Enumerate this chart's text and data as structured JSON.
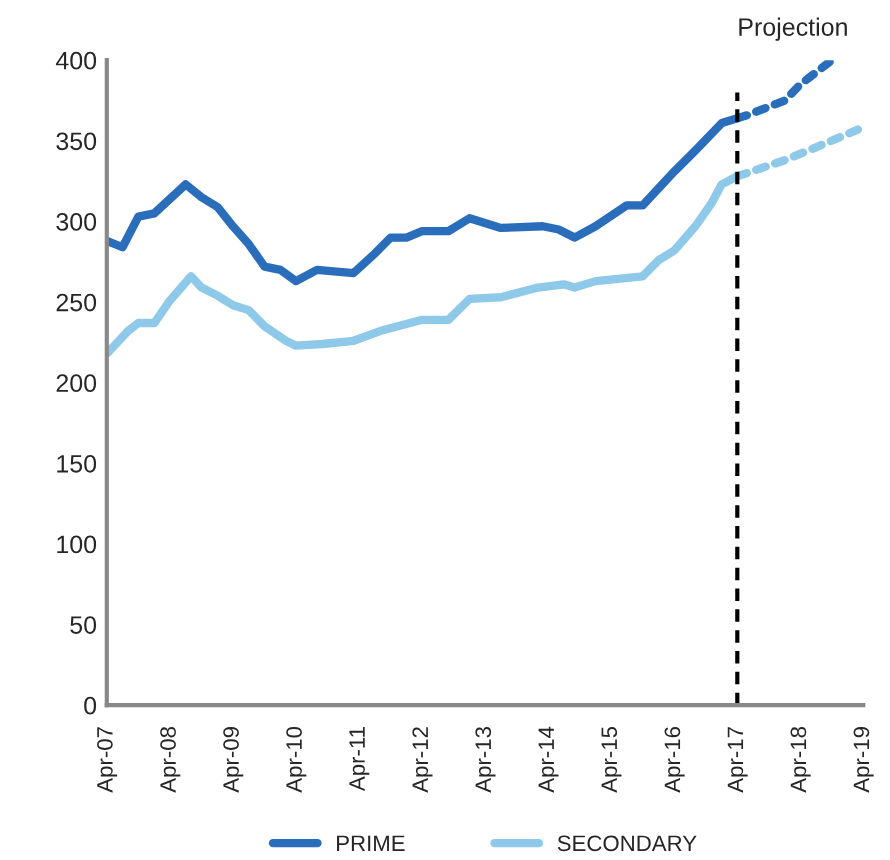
{
  "chart_data": {
    "type": "line",
    "xlim": [
      "2007-04",
      "2019-04"
    ],
    "xticks": [
      {
        "value": "2007-04",
        "label": "Apr-07"
      },
      {
        "value": "2008-04",
        "label": "Apr-08"
      },
      {
        "value": "2009-04",
        "label": "Apr-09"
      },
      {
        "value": "2010-04",
        "label": "Apr-10"
      },
      {
        "value": "2011-04",
        "label": "Apr-11"
      },
      {
        "value": "2012-04",
        "label": "Apr-12"
      },
      {
        "value": "2013-04",
        "label": "Apr-13"
      },
      {
        "value": "2014-04",
        "label": "Apr-14"
      },
      {
        "value": "2015-04",
        "label": "Apr-15"
      },
      {
        "value": "2016-04",
        "label": "Apr-16"
      },
      {
        "value": "2017-04",
        "label": "Apr-17"
      },
      {
        "value": "2018-04",
        "label": "Apr-18"
      },
      {
        "value": "2019-04",
        "label": "Apr-19"
      }
    ],
    "ylim": [
      0,
      400
    ],
    "yticks": [
      0,
      50,
      100,
      150,
      200,
      250,
      300,
      350,
      400
    ],
    "grid": false,
    "legend": "bottom",
    "marker": "none",
    "series": [
      {
        "name": "PRIME",
        "color": "#2a6ebb",
        "line_style": "solid",
        "x": [
          "2007-04",
          "2007-07",
          "2007-10",
          "2008-01",
          "2008-07",
          "2008-10",
          "2009-01",
          "2009-04",
          "2009-07",
          "2009-10",
          "2010-01",
          "2010-04",
          "2010-08",
          "2011-03",
          "2011-07",
          "2011-10",
          "2012-01",
          "2012-04",
          "2012-09",
          "2013-01",
          "2013-07",
          "2014-03",
          "2014-06",
          "2014-09",
          "2015-01",
          "2015-07",
          "2015-10",
          "2016-04",
          "2016-08",
          "2017-01",
          "2017-04"
        ],
        "values": [
          288,
          284,
          303,
          305,
          323,
          315,
          309,
          297,
          286,
          272,
          270,
          263,
          270,
          268,
          280,
          290,
          290,
          294,
          294,
          302,
          296,
          297,
          295,
          290,
          297,
          310,
          310,
          331,
          344,
          361,
          364
        ]
      },
      {
        "name": "SECONDARY",
        "color": "#8ec9ea",
        "line_style": "solid",
        "x": [
          "2007-04",
          "2007-08",
          "2007-10",
          "2008-01",
          "2008-04",
          "2008-08",
          "2008-10",
          "2009-01",
          "2009-04",
          "2009-07",
          "2009-10",
          "2010-02",
          "2010-04",
          "2010-09",
          "2011-03",
          "2011-08",
          "2012-04",
          "2012-09",
          "2013-01",
          "2013-07",
          "2014-02",
          "2014-07",
          "2014-09",
          "2015-01",
          "2015-10",
          "2016-01",
          "2016-04",
          "2016-08",
          "2016-11",
          "2017-01",
          "2017-04"
        ],
        "values": [
          218,
          232,
          237,
          237,
          251,
          266,
          259,
          254,
          248,
          245,
          235,
          226,
          223,
          224,
          226,
          232,
          239,
          239,
          252,
          253,
          259,
          261,
          259,
          263,
          266,
          276,
          282,
          297,
          311,
          323,
          328
        ]
      },
      {
        "color": "#2a6ebb",
        "line_style": "dotted",
        "x": [
          "2017-04",
          "2017-06",
          "2018-01",
          "2018-04",
          "2018-10"
        ],
        "values": [
          364,
          366,
          375,
          385,
          400
        ]
      },
      {
        "color": "#8ec9ea",
        "line_style": "dotted",
        "x": [
          "2017-04",
          "2018-01",
          "2018-07",
          "2019-03"
        ],
        "values": [
          328,
          338,
          346,
          357
        ]
      }
    ],
    "ref_lines": [
      {
        "axis": "x",
        "value": "2017-04",
        "label": "Projection",
        "color": "#000000",
        "line_style": "dashed"
      }
    ]
  }
}
